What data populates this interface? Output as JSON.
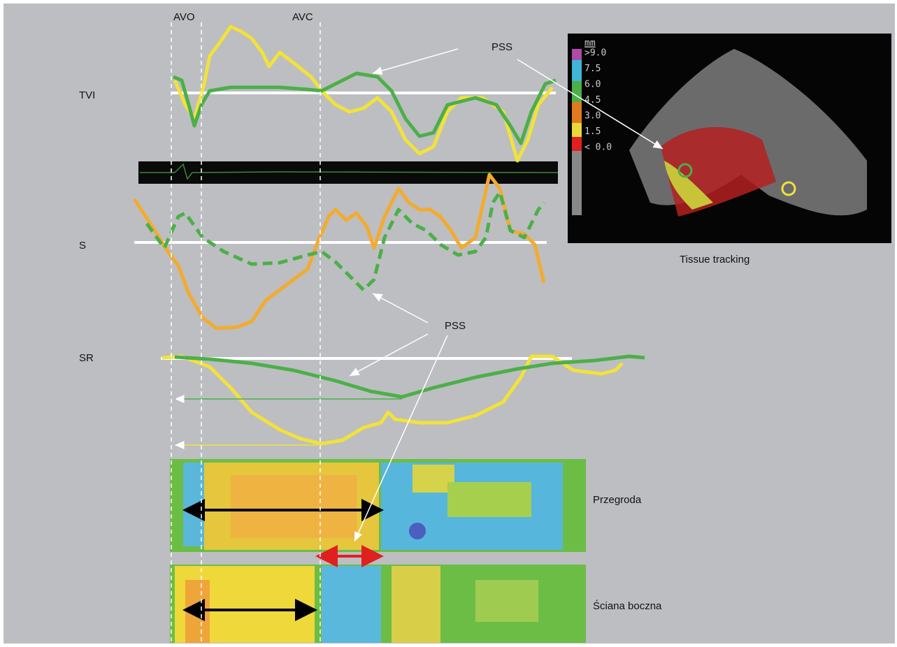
{
  "markers": [
    "AVO",
    "AVC"
  ],
  "rows": [
    "TVI",
    "S",
    "SR"
  ],
  "annotations": [
    "PSS",
    "PSS"
  ],
  "image": {
    "caption": "Tissue tracking",
    "scale": {
      "unit": "mm",
      "labels": [
        ">9.0",
        "7.5",
        "6.0",
        "4.5",
        "3.0",
        "1.5",
        "< 0.0"
      ]
    }
  },
  "maps": [
    "Przegroda",
    "Ściana boczna"
  ]
}
